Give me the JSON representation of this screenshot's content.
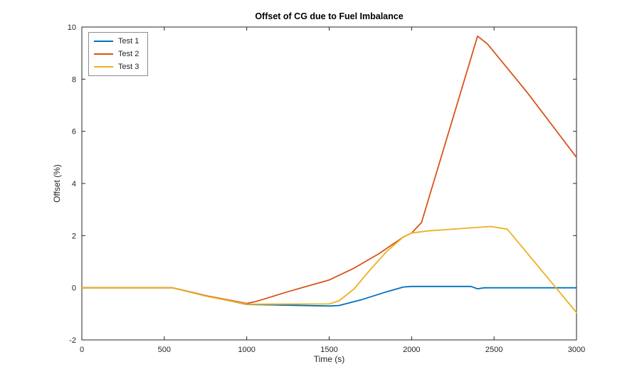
{
  "chart_data": {
    "type": "line",
    "title": "Offset of CG due to Fuel Imbalance",
    "xlabel": "Time (s)",
    "ylabel": "Offset (%)",
    "xlim": [
      0,
      3000
    ],
    "ylim": [
      -2,
      10
    ],
    "xticks": [
      0,
      500,
      1000,
      1500,
      2000,
      2500,
      3000
    ],
    "yticks": [
      -2,
      0,
      2,
      4,
      6,
      8,
      10
    ],
    "grid": false,
    "legend_position": "top-left",
    "axis_color": "#262626",
    "series": [
      {
        "name": "Test 1",
        "color": "#0072BD",
        "points": [
          [
            0,
            0
          ],
          [
            550,
            0
          ],
          [
            750,
            -0.3
          ],
          [
            1000,
            -0.64
          ],
          [
            1250,
            -0.67
          ],
          [
            1500,
            -0.7
          ],
          [
            1560,
            -0.68
          ],
          [
            1700,
            -0.45
          ],
          [
            1850,
            -0.15
          ],
          [
            1950,
            0.03
          ],
          [
            2000,
            0.05
          ],
          [
            2360,
            0.05
          ],
          [
            2400,
            -0.04
          ],
          [
            2440,
            0
          ],
          [
            3000,
            0
          ]
        ]
      },
      {
        "name": "Test 2",
        "color": "#D95319",
        "points": [
          [
            0,
            0
          ],
          [
            550,
            0
          ],
          [
            750,
            -0.3
          ],
          [
            1000,
            -0.6
          ],
          [
            1060,
            -0.52
          ],
          [
            1250,
            -0.15
          ],
          [
            1400,
            0.12
          ],
          [
            1500,
            0.3
          ],
          [
            1650,
            0.75
          ],
          [
            1800,
            1.3
          ],
          [
            1950,
            1.95
          ],
          [
            2000,
            2.1
          ],
          [
            2060,
            2.5
          ],
          [
            2400,
            9.65
          ],
          [
            2460,
            9.35
          ],
          [
            2700,
            7.5
          ],
          [
            3000,
            5.0
          ]
        ]
      },
      {
        "name": "Test 3",
        "color": "#EDB120",
        "points": [
          [
            0,
            0
          ],
          [
            550,
            0
          ],
          [
            750,
            -0.32
          ],
          [
            1000,
            -0.63
          ],
          [
            1500,
            -0.62
          ],
          [
            1560,
            -0.5
          ],
          [
            1650,
            -0.05
          ],
          [
            1750,
            0.7
          ],
          [
            1850,
            1.4
          ],
          [
            1950,
            1.95
          ],
          [
            2000,
            2.1
          ],
          [
            2100,
            2.18
          ],
          [
            2300,
            2.27
          ],
          [
            2480,
            2.35
          ],
          [
            2580,
            2.25
          ],
          [
            3000,
            -0.95
          ]
        ]
      }
    ]
  }
}
